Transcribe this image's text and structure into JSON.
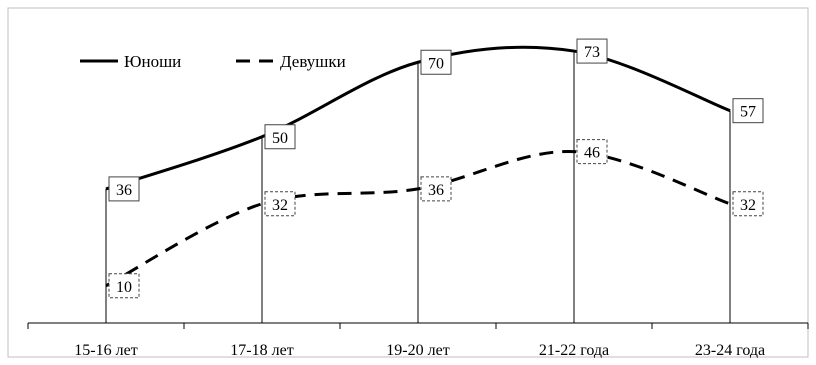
{
  "chart_data": {
    "type": "line",
    "title": "",
    "xlabel": "",
    "ylabel": "",
    "categories": [
      "15-16 лет",
      "17-18 лет",
      "19-20 лет",
      "21-22 года",
      "23-24 года"
    ],
    "series": [
      {
        "name": "Юноши",
        "values": [
          36,
          50,
          70,
          73,
          57
        ],
        "line_style": "solid",
        "label_box": "solid"
      },
      {
        "name": "Девушки",
        "values": [
          10,
          32,
          36,
          46,
          32
        ],
        "line_style": "dashed",
        "label_box": "dashed"
      }
    ],
    "ylim": [
      0,
      80
    ],
    "smooth": true,
    "drop_lines": true,
    "grid": false,
    "legend": {
      "placement": "top-left",
      "orientation": "horizontal"
    },
    "colors": {
      "line": "#000000",
      "background": "#ffffff",
      "frame": "#bfbfbf"
    }
  }
}
